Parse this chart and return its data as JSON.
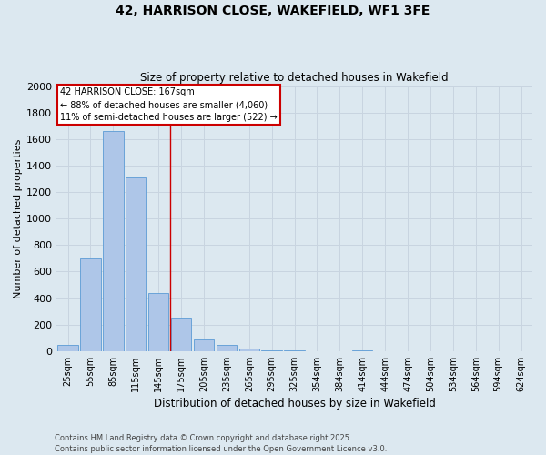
{
  "title_line1": "42, HARRISON CLOSE, WAKEFIELD, WF1 3FE",
  "title_line2": "Size of property relative to detached houses in Wakefield",
  "xlabel": "Distribution of detached houses by size in Wakefield",
  "ylabel": "Number of detached properties",
  "categories": [
    "25sqm",
    "55sqm",
    "85sqm",
    "115sqm",
    "145sqm",
    "175sqm",
    "205sqm",
    "235sqm",
    "265sqm",
    "295sqm",
    "325sqm",
    "354sqm",
    "384sqm",
    "414sqm",
    "444sqm",
    "474sqm",
    "504sqm",
    "534sqm",
    "564sqm",
    "594sqm",
    "624sqm"
  ],
  "values": [
    50,
    700,
    1660,
    1310,
    440,
    250,
    90,
    50,
    20,
    8,
    5,
    2,
    0,
    3,
    0,
    0,
    0,
    0,
    0,
    0,
    0
  ],
  "bar_color": "#aec6e8",
  "bar_edge_color": "#5b9bd5",
  "grid_color": "#c8d4e0",
  "bg_color": "#dce8f0",
  "red_line_x": 4.5,
  "annotation_text_line1": "42 HARRISON CLOSE: 167sqm",
  "annotation_text_line2": "← 88% of detached houses are smaller (4,060)",
  "annotation_text_line3": "11% of semi-detached houses are larger (522) →",
  "annotation_box_color": "#ffffff",
  "annotation_border_color": "#cc0000",
  "footer_line1": "Contains HM Land Registry data © Crown copyright and database right 2025.",
  "footer_line2": "Contains public sector information licensed under the Open Government Licence v3.0.",
  "ylim": [
    0,
    2000
  ],
  "yticks": [
    0,
    200,
    400,
    600,
    800,
    1000,
    1200,
    1400,
    1600,
    1800,
    2000
  ]
}
